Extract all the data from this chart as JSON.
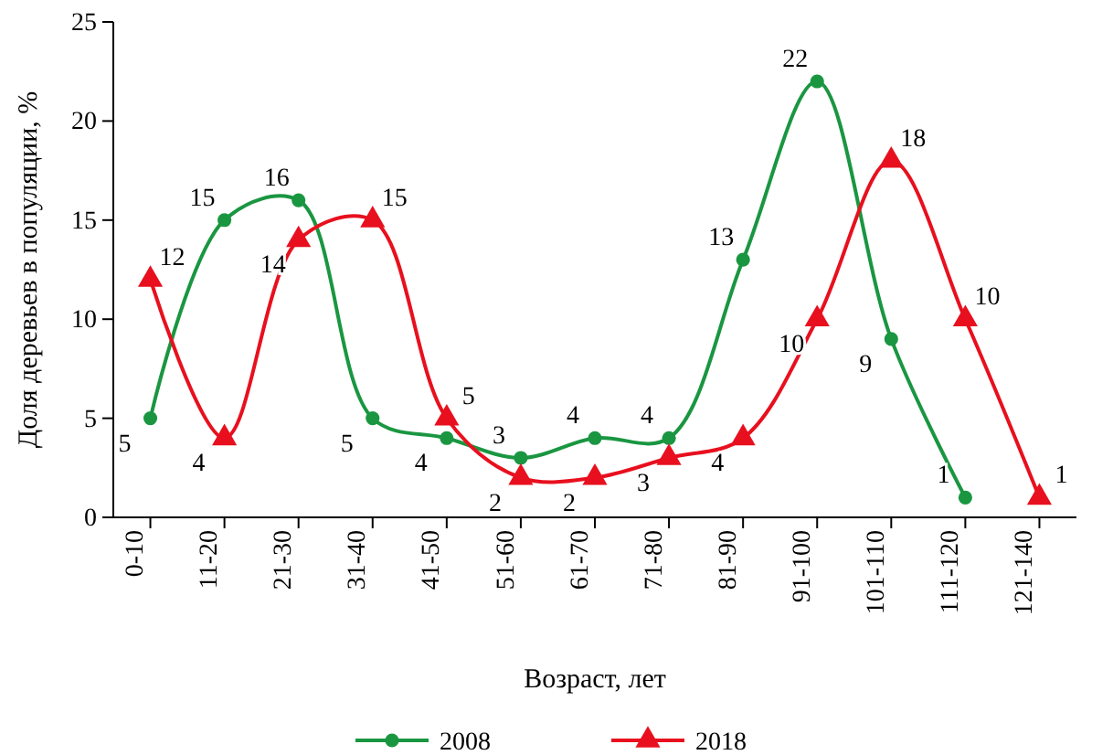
{
  "chart_data": {
    "type": "line",
    "xlabel": "Возраст, лет",
    "ylabel": "Доля деревьев в популяции, %",
    "categories": [
      "0-10",
      "11-20",
      "21-30",
      "31-40",
      "41-50",
      "51-60",
      "61-70",
      "71-80",
      "81-90",
      "91-100",
      "101-110",
      "111-120",
      "121-140"
    ],
    "series": [
      {
        "name": "2008",
        "color": "#1a9641",
        "marker": "circle",
        "values": [
          5,
          15,
          16,
          5,
          4,
          3,
          4,
          4,
          13,
          22,
          9,
          1,
          null
        ]
      },
      {
        "name": "2018",
        "color": "#e8101e",
        "marker": "triangle",
        "values": [
          12,
          4,
          14,
          15,
          5,
          2,
          2,
          3,
          4,
          10,
          18,
          10,
          1
        ]
      }
    ],
    "ylim": [
      0,
      25
    ],
    "yticks": [
      0,
      5,
      10,
      15,
      20,
      25
    ],
    "data_labels": true,
    "legend": "bottom",
    "grid": false
  }
}
